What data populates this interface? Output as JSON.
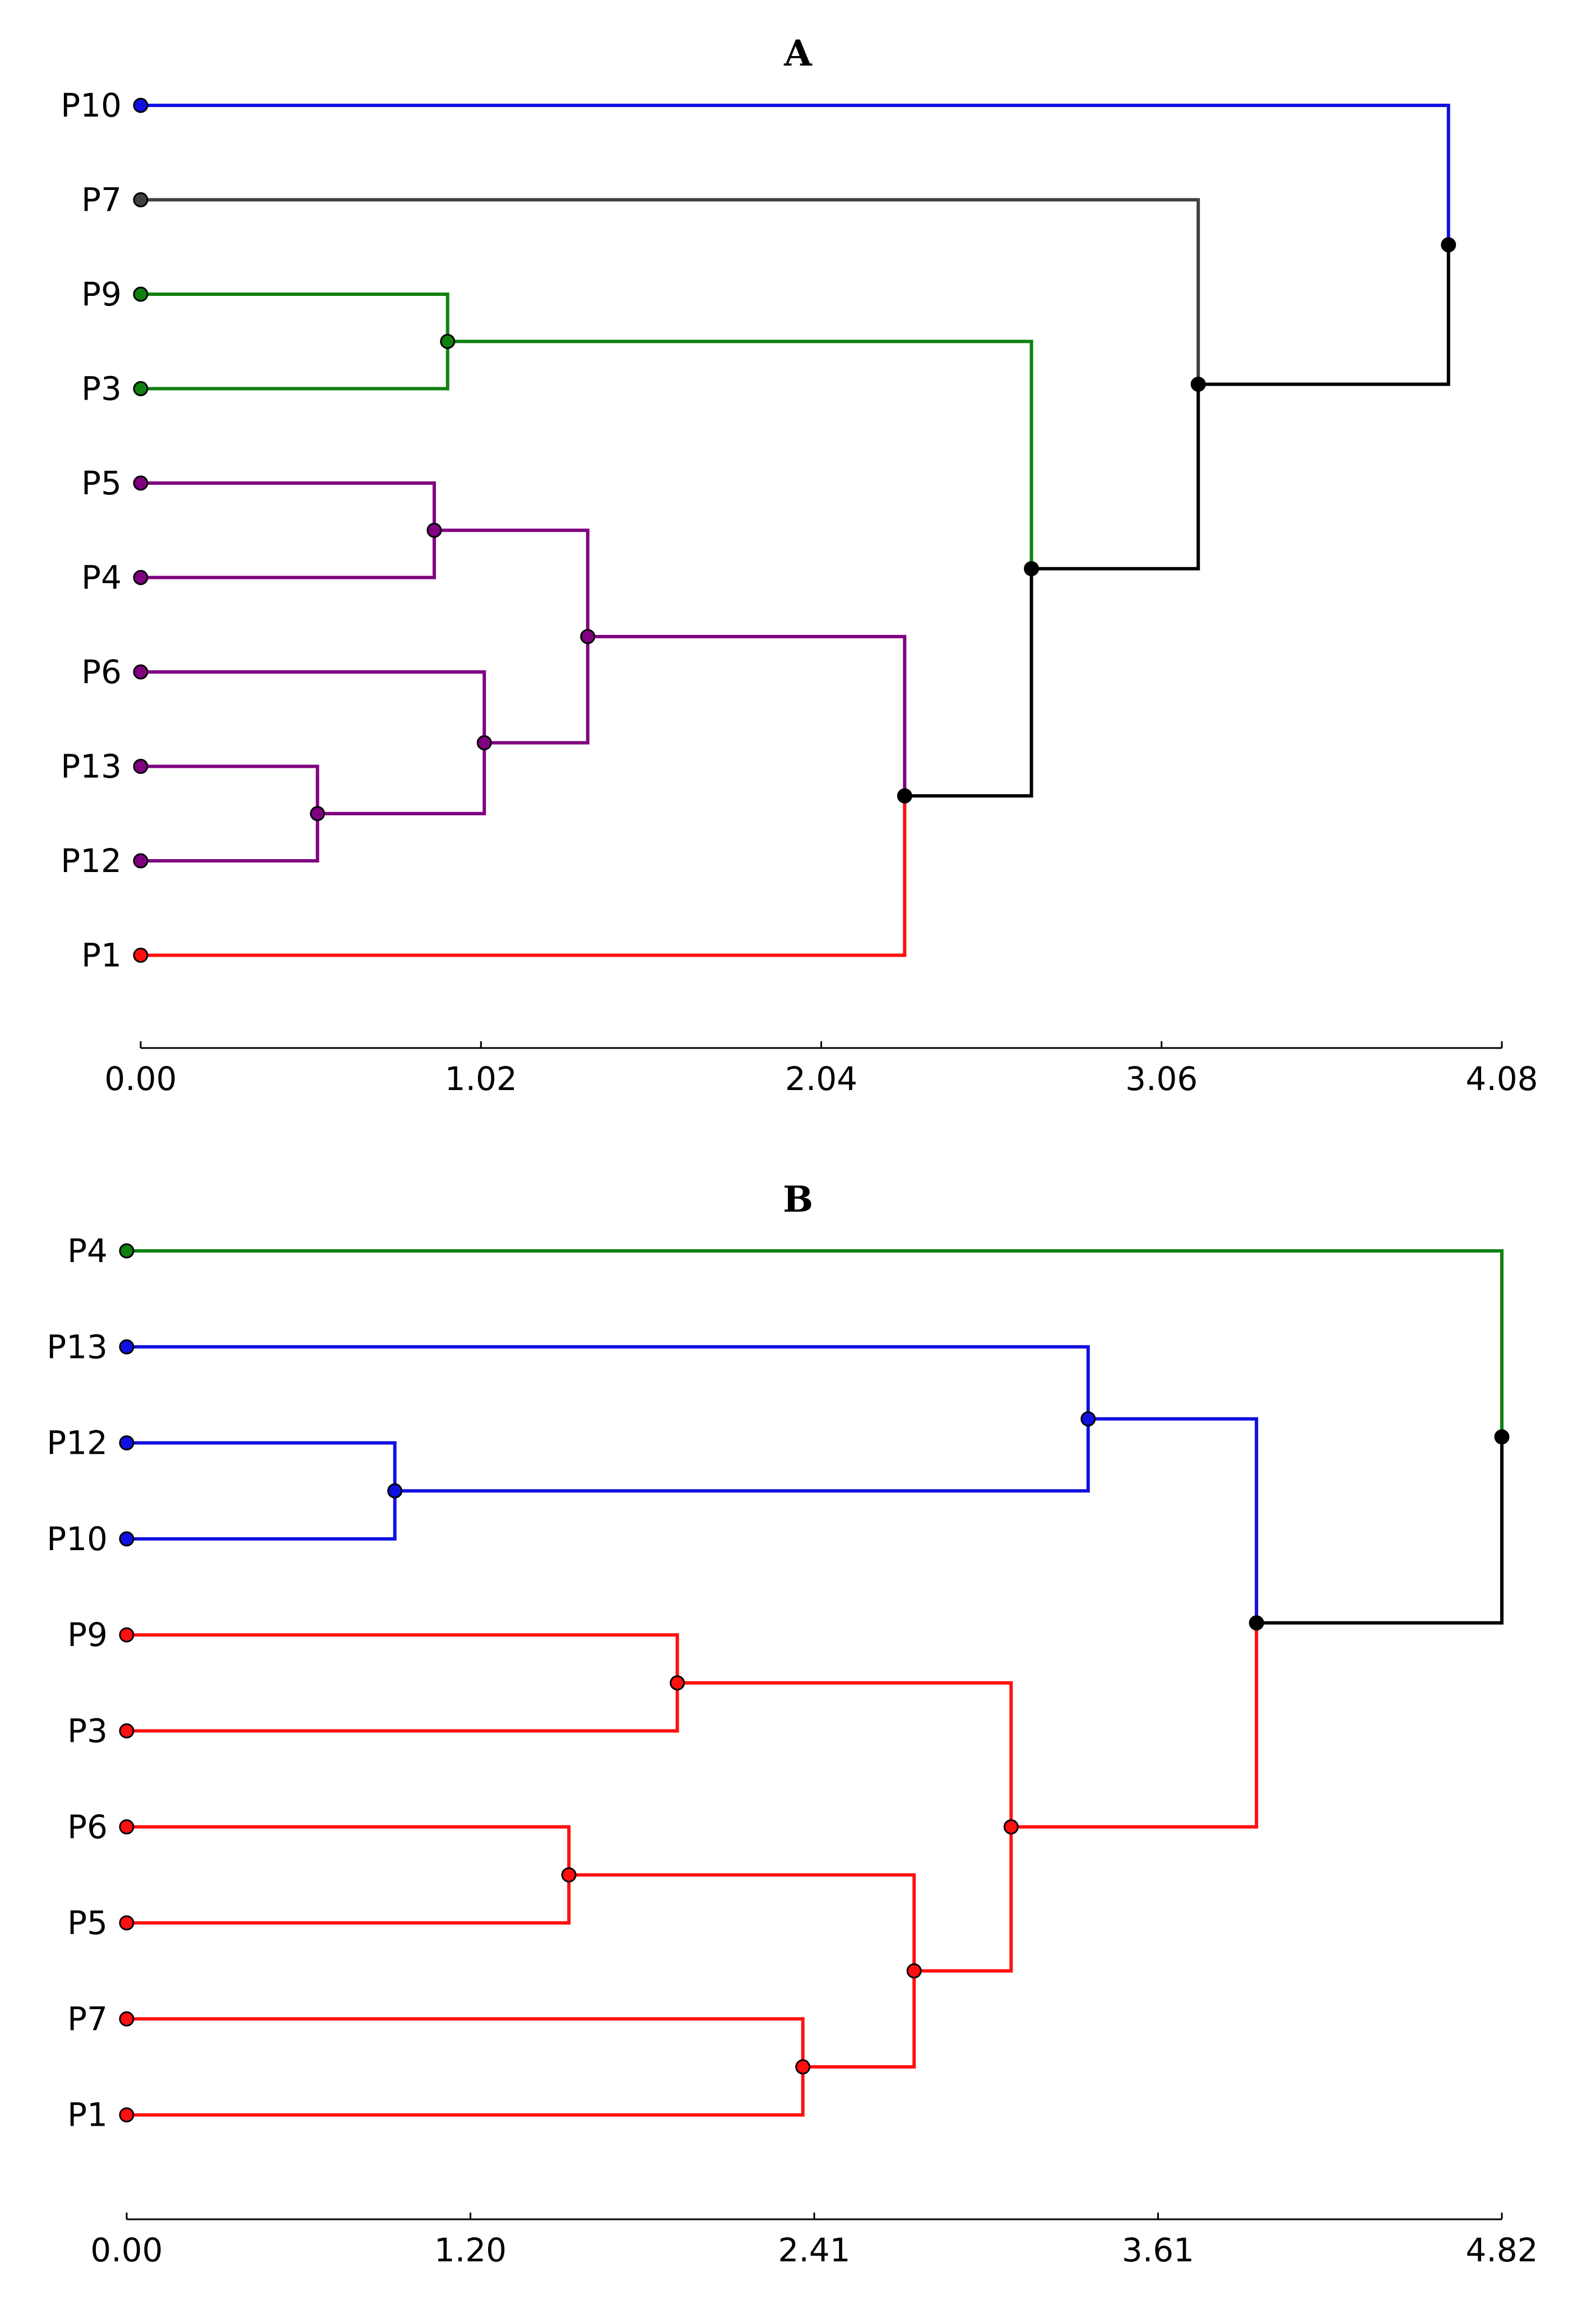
{
  "chart_data": [
    {
      "type": "dendrogram",
      "title": "A",
      "xlim": [
        0,
        4.08
      ],
      "ticks": [
        0,
        1.02,
        2.04,
        3.06,
        4.08
      ],
      "tick_labels": [
        "0.00",
        "1.02",
        "2.04",
        "3.06",
        "4.08"
      ],
      "leaves": [
        {
          "id": "P10",
          "label": "P10",
          "color": "#1010e0"
        },
        {
          "id": "P7",
          "label": "P7",
          "color": "#404040"
        },
        {
          "id": "P9",
          "label": "P9",
          "color": "#108010"
        },
        {
          "id": "P3",
          "label": "P3",
          "color": "#108010"
        },
        {
          "id": "P5",
          "label": "P5",
          "color": "#800080"
        },
        {
          "id": "P4",
          "label": "P4",
          "color": "#800080"
        },
        {
          "id": "P6",
          "label": "P6",
          "color": "#800080"
        },
        {
          "id": "P13",
          "label": "P13",
          "color": "#800080"
        },
        {
          "id": "P12",
          "label": "P12",
          "color": "#800080"
        },
        {
          "id": "P1",
          "label": "P1",
          "color": "#ff1010"
        }
      ],
      "merges": [
        {
          "id": "a1",
          "children": [
            "P9",
            "P3"
          ],
          "height": 0.92,
          "color": "#108010"
        },
        {
          "id": "a2",
          "children": [
            "P5",
            "P4"
          ],
          "height": 0.88,
          "color": "#800080"
        },
        {
          "id": "a3",
          "children": [
            "P13",
            "P12"
          ],
          "height": 0.53,
          "color": "#800080"
        },
        {
          "id": "a4",
          "children": [
            "P6",
            "a3"
          ],
          "height": 1.03,
          "color": "#800080"
        },
        {
          "id": "a5",
          "children": [
            "a2",
            "a4"
          ],
          "height": 1.34,
          "color": "#800080"
        },
        {
          "id": "a6",
          "children": [
            "a5",
            "P1"
          ],
          "height": 2.29,
          "color": "#000000"
        },
        {
          "id": "a7",
          "children": [
            "a1",
            "a6"
          ],
          "height": 2.67,
          "color": "#000000"
        },
        {
          "id": "a8",
          "children": [
            "P7",
            "a7"
          ],
          "height": 3.17,
          "color": "#000000"
        },
        {
          "id": "a9",
          "children": [
            "P10",
            "a8"
          ],
          "height": 3.92,
          "color": "#000000"
        }
      ]
    },
    {
      "type": "dendrogram",
      "title": "B",
      "xlim": [
        0,
        4.82
      ],
      "ticks": [
        0,
        1.205,
        2.41,
        3.615,
        4.82
      ],
      "tick_labels": [
        "0.00",
        "1.20",
        "2.41",
        "3.61",
        "4.82"
      ],
      "leaves": [
        {
          "id": "P4",
          "label": "P4",
          "color": "#108010"
        },
        {
          "id": "P13",
          "label": "P13",
          "color": "#1010e0"
        },
        {
          "id": "P12",
          "label": "P12",
          "color": "#1010e0"
        },
        {
          "id": "P10",
          "label": "P10",
          "color": "#1010e0"
        },
        {
          "id": "P9",
          "label": "P9",
          "color": "#ff1010"
        },
        {
          "id": "P3",
          "label": "P3",
          "color": "#ff1010"
        },
        {
          "id": "P6",
          "label": "P6",
          "color": "#ff1010"
        },
        {
          "id": "P5",
          "label": "P5",
          "color": "#ff1010"
        },
        {
          "id": "P7",
          "label": "P7",
          "color": "#ff1010"
        },
        {
          "id": "P1",
          "label": "P1",
          "color": "#ff1010"
        }
      ],
      "merges": [
        {
          "id": "b1",
          "children": [
            "P12",
            "P10"
          ],
          "height": 0.94,
          "color": "#1010e0"
        },
        {
          "id": "b2",
          "children": [
            "P13",
            "b1"
          ],
          "height": 3.37,
          "color": "#1010e0"
        },
        {
          "id": "b3",
          "children": [
            "P9",
            "P3"
          ],
          "height": 1.93,
          "color": "#ff1010"
        },
        {
          "id": "b4",
          "children": [
            "P6",
            "P5"
          ],
          "height": 1.55,
          "color": "#ff1010"
        },
        {
          "id": "b5",
          "children": [
            "P7",
            "P1"
          ],
          "height": 2.37,
          "color": "#ff1010"
        },
        {
          "id": "b6",
          "children": [
            "b4",
            "b5"
          ],
          "height": 2.76,
          "color": "#ff1010"
        },
        {
          "id": "b7",
          "children": [
            "b3",
            "b6"
          ],
          "height": 3.1,
          "color": "#ff1010"
        },
        {
          "id": "b8",
          "children": [
            "b2",
            "b7"
          ],
          "height": 3.96,
          "color": "#000000"
        },
        {
          "id": "b9",
          "children": [
            "P4",
            "b8"
          ],
          "height": 4.82,
          "color": "#000000"
        }
      ]
    }
  ]
}
